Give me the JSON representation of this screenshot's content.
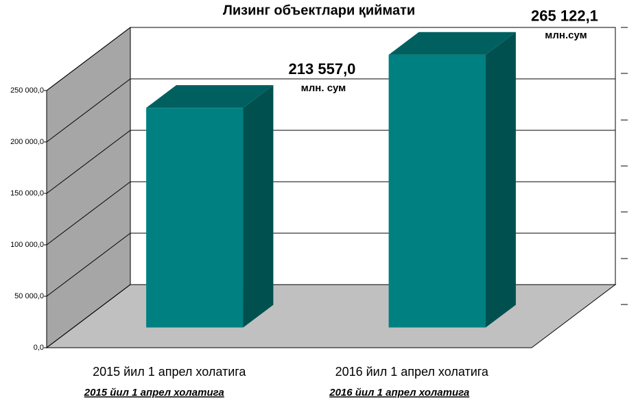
{
  "chart_data": {
    "type": "bar3d",
    "title": "Лизинг объектлари қиймати",
    "categories": [
      "2015 йил 1 апрел холатига",
      "2016 йил 1 апрел холатига"
    ],
    "subcategories": [
      "2015 йил 1 апрел холатига",
      "2016 йил 1 апрел холатига"
    ],
    "values": [
      213557.0,
      265122.1
    ],
    "value_labels": [
      "213 557,0",
      "265 122,1"
    ],
    "annotations": [
      "млн. сум",
      "млн.сум"
    ],
    "color": "#008080",
    "ylim": [
      0,
      250000
    ],
    "yticks": [
      {
        "value": 0,
        "label": "0,0"
      },
      {
        "value": 50000,
        "label": "50 000,0"
      },
      {
        "value": 100000,
        "label": "100 000,0"
      },
      {
        "value": 150000,
        "label": "150 000,0"
      },
      {
        "value": 200000,
        "label": "200 000,0"
      },
      {
        "value": 250000,
        "label": "250 000,0"
      }
    ],
    "grid": true
  }
}
